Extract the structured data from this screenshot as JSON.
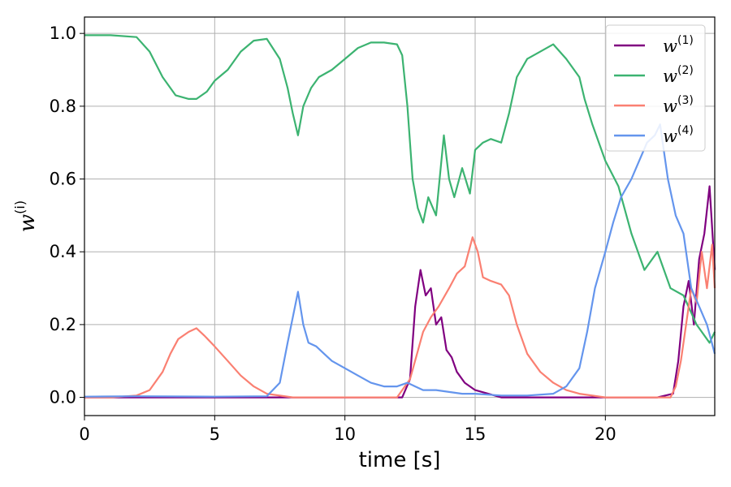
{
  "chart_data": {
    "type": "line",
    "title": "",
    "xlabel": "time [s]",
    "ylabel": "w",
    "ylabel_sup": "(i)",
    "xlim": [
      0,
      24.2
    ],
    "ylim": [
      -0.05,
      1.045
    ],
    "xticks": [
      0,
      5,
      10,
      15,
      20
    ],
    "xtick_labels": [
      "0",
      "5",
      "10",
      "15",
      "20"
    ],
    "yticks": [
      0.0,
      0.2,
      0.4,
      0.6,
      0.8,
      1.0
    ],
    "ytick_labels": [
      "0.0",
      "0.2",
      "0.4",
      "0.6",
      "0.8",
      "1.0"
    ],
    "grid": true,
    "legend_position": "top-right",
    "series": [
      {
        "name": "w",
        "name_sup": "(1)",
        "color": "#800080",
        "x": [
          0,
          5,
          10,
          12.2,
          12.5,
          12.7,
          12.9,
          13.1,
          13.3,
          13.5,
          13.7,
          13.9,
          14.1,
          14.3,
          14.6,
          15,
          16,
          17,
          18,
          19,
          20,
          21,
          22,
          22.6,
          22.8,
          23.0,
          23.2,
          23.4,
          23.6,
          23.8,
          24.0,
          24.2
        ],
        "y": [
          0.0,
          0.0,
          0.0,
          0.0,
          0.05,
          0.25,
          0.35,
          0.28,
          0.3,
          0.2,
          0.22,
          0.13,
          0.11,
          0.07,
          0.04,
          0.02,
          0.0,
          0.0,
          0.0,
          0.0,
          0.0,
          0.0,
          0.0,
          0.01,
          0.1,
          0.25,
          0.32,
          0.2,
          0.38,
          0.45,
          0.58,
          0.35
        ]
      },
      {
        "name": "w",
        "name_sup": "(2)",
        "color": "#3cb371",
        "x": [
          0,
          1,
          2,
          2.5,
          3,
          3.5,
          4,
          4.3,
          4.7,
          5,
          5.5,
          6,
          6.5,
          7,
          7.5,
          7.8,
          8.0,
          8.2,
          8.4,
          8.7,
          9,
          9.5,
          10,
          10.5,
          11,
          11.5,
          12,
          12.2,
          12.4,
          12.6,
          12.8,
          13,
          13.2,
          13.5,
          13.8,
          14.0,
          14.2,
          14.5,
          14.8,
          15,
          15.3,
          15.6,
          16,
          16.3,
          16.6,
          17,
          17.5,
          18,
          18.5,
          19,
          19.2,
          19.5,
          20,
          20.5,
          21,
          21.5,
          22,
          22.5,
          23,
          23.5,
          24,
          24.2
        ],
        "y": [
          0.995,
          0.995,
          0.99,
          0.95,
          0.88,
          0.83,
          0.82,
          0.82,
          0.84,
          0.87,
          0.9,
          0.95,
          0.98,
          0.985,
          0.93,
          0.85,
          0.78,
          0.72,
          0.8,
          0.85,
          0.88,
          0.9,
          0.93,
          0.96,
          0.975,
          0.975,
          0.97,
          0.94,
          0.8,
          0.6,
          0.52,
          0.48,
          0.55,
          0.5,
          0.72,
          0.6,
          0.55,
          0.63,
          0.56,
          0.68,
          0.7,
          0.71,
          0.7,
          0.78,
          0.88,
          0.93,
          0.95,
          0.97,
          0.93,
          0.88,
          0.82,
          0.75,
          0.65,
          0.58,
          0.45,
          0.35,
          0.4,
          0.3,
          0.28,
          0.2,
          0.15,
          0.18
        ]
      },
      {
        "name": "w",
        "name_sup": "(3)",
        "color": "#fa8072",
        "x": [
          0,
          1,
          2,
          2.5,
          3,
          3.3,
          3.6,
          4,
          4.3,
          4.6,
          5,
          5.5,
          6,
          6.5,
          7,
          8,
          10,
          12,
          12.5,
          13,
          13.3,
          13.6,
          14,
          14.3,
          14.6,
          14.9,
          15.1,
          15.3,
          15.6,
          16,
          16.3,
          16.6,
          17,
          17.5,
          18,
          18.5,
          19,
          20,
          21,
          22,
          22.5,
          22.7,
          22.9,
          23.1,
          23.3,
          23.5,
          23.7,
          23.9,
          24.1,
          24.2
        ],
        "y": [
          0.0,
          0.0,
          0.005,
          0.02,
          0.07,
          0.12,
          0.16,
          0.18,
          0.19,
          0.17,
          0.14,
          0.1,
          0.06,
          0.03,
          0.01,
          0.0,
          0.0,
          0.0,
          0.05,
          0.18,
          0.22,
          0.25,
          0.3,
          0.34,
          0.36,
          0.44,
          0.4,
          0.33,
          0.32,
          0.31,
          0.28,
          0.2,
          0.12,
          0.07,
          0.04,
          0.02,
          0.01,
          0.0,
          0.0,
          0.0,
          0.0,
          0.03,
          0.1,
          0.2,
          0.3,
          0.26,
          0.4,
          0.3,
          0.42,
          0.3
        ]
      },
      {
        "name": "w",
        "name_sup": "(4)",
        "color": "#6495ed",
        "x": [
          0,
          2,
          5,
          7,
          7.5,
          7.8,
          8.0,
          8.2,
          8.4,
          8.6,
          8.9,
          9.2,
          9.5,
          10,
          10.5,
          11,
          11.5,
          12,
          12.4,
          12.7,
          13,
          13.5,
          14,
          14.5,
          15,
          16,
          17,
          18,
          18.5,
          19,
          19.3,
          19.6,
          20,
          20.3,
          20.6,
          21,
          21.3,
          21.6,
          21.9,
          22.1,
          22.4,
          22.7,
          23.0,
          23.3,
          23.6,
          23.9,
          24.2
        ],
        "y": [
          0.002,
          0.003,
          0.002,
          0.003,
          0.04,
          0.15,
          0.22,
          0.29,
          0.2,
          0.15,
          0.14,
          0.12,
          0.1,
          0.08,
          0.06,
          0.04,
          0.03,
          0.03,
          0.04,
          0.03,
          0.02,
          0.02,
          0.015,
          0.01,
          0.01,
          0.005,
          0.005,
          0.01,
          0.03,
          0.08,
          0.18,
          0.3,
          0.4,
          0.48,
          0.55,
          0.6,
          0.65,
          0.7,
          0.72,
          0.75,
          0.6,
          0.5,
          0.45,
          0.3,
          0.25,
          0.2,
          0.12
        ]
      }
    ]
  }
}
